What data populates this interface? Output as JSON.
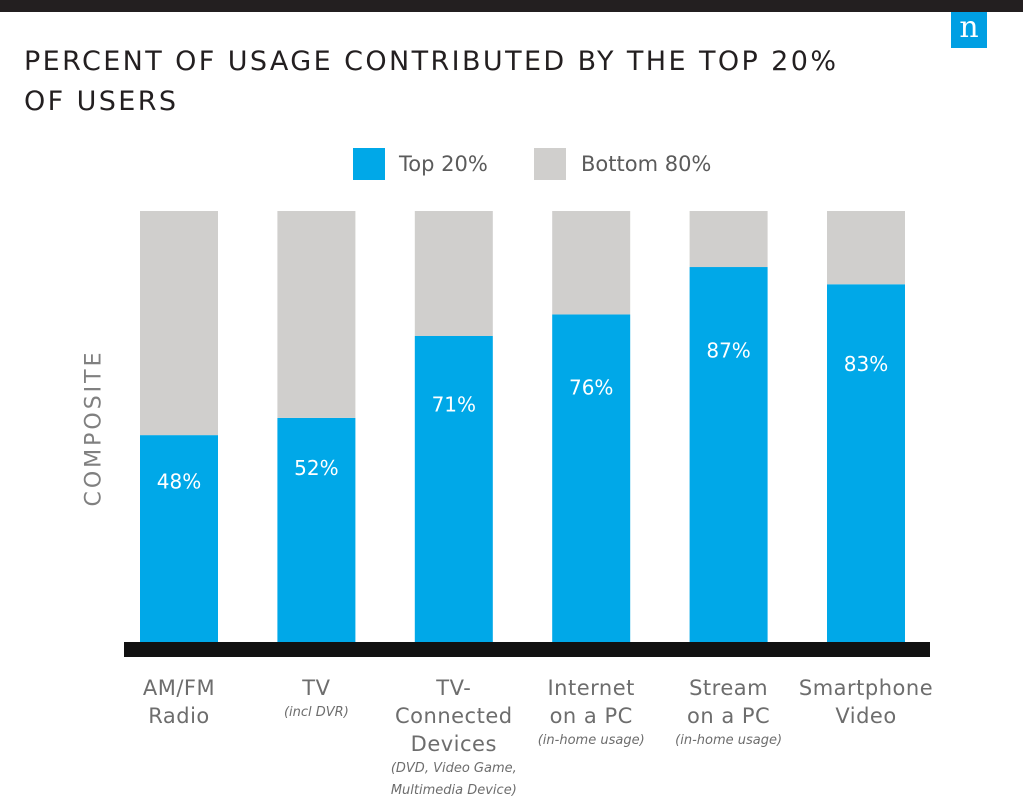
{
  "title_line1": "PERCENT OF USAGE CONTRIBUTED BY THE TOP 20%",
  "title_line2": "OF USERS",
  "logo_text": "n",
  "colors": {
    "top_bar": "#231f20",
    "logo_bg": "#009fe3",
    "top20": "#00a8e8",
    "bottom80": "#d0cfcd",
    "baseline": "#111111",
    "bar_label": "#ffffff"
  },
  "chart_data": {
    "type": "bar",
    "stacked": true,
    "title": "PERCENT OF USAGE CONTRIBUTED BY THE TOP 20% OF USERS",
    "ylabel": "COMPOSITE",
    "ylim": [
      0,
      100
    ],
    "grid": false,
    "legend_position": "top-center",
    "categories": [
      {
        "line1": "AM/FM",
        "line2": "Radio",
        "line3": "",
        "note1": "",
        "note2": ""
      },
      {
        "line1": "TV",
        "line2": "",
        "line3": "",
        "note1": "(incl DVR)",
        "note2": ""
      },
      {
        "line1": "TV-",
        "line2": "Connected",
        "line3": "Devices",
        "note1": "(DVD, Video Game,",
        "note2": "Multimedia Device)"
      },
      {
        "line1": "Internet",
        "line2": "on a PC",
        "line3": "",
        "note1": "(in-home usage)",
        "note2": ""
      },
      {
        "line1": "Stream",
        "line2": "on a PC",
        "line3": "",
        "note1": "(in-home usage)",
        "note2": ""
      },
      {
        "line1": "Smartphone",
        "line2": "Video",
        "line3": "",
        "note1": "",
        "note2": ""
      }
    ],
    "series": [
      {
        "name": "Top 20%",
        "color": "#00a8e8",
        "values": [
          48,
          52,
          71,
          76,
          87,
          83
        ]
      },
      {
        "name": "Bottom 80%",
        "color": "#d0cfcd",
        "values": [
          52,
          48,
          29,
          24,
          13,
          17
        ]
      }
    ],
    "data_labels": [
      "48%",
      "52%",
      "71%",
      "76%",
      "87%",
      "83%"
    ]
  }
}
